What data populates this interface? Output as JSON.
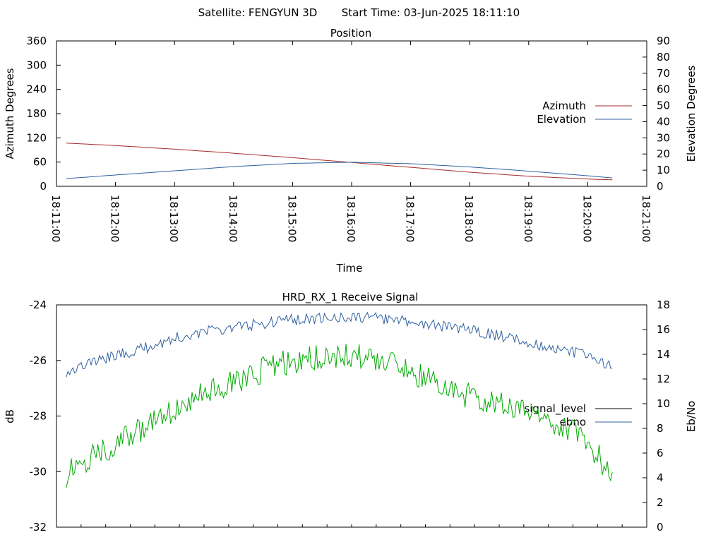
{
  "header": {
    "satellite_label": "Satellite: FENGYUN 3D",
    "start_time_label": "Start Time: 03-Jun-2025 18:11:10"
  },
  "chart_data": [
    {
      "type": "line",
      "title": "Position",
      "xlabel": "Time",
      "ylabel": "Azimuth Degrees",
      "y2label": "Elevation Degrees",
      "xlim": [
        "18:11:00",
        "18:21:00"
      ],
      "x_ticks": [
        "18:11:00",
        "18:12:00",
        "18:13:00",
        "18:14:00",
        "18:15:00",
        "18:16:00",
        "18:17:00",
        "18:18:00",
        "18:19:00",
        "18:20:00",
        "18:21:00"
      ],
      "ylim": [
        0,
        360
      ],
      "y_ticks": [
        0,
        60,
        120,
        180,
        240,
        300,
        360
      ],
      "y2lim": [
        0,
        90
      ],
      "y2_ticks": [
        0,
        10,
        20,
        30,
        40,
        50,
        60,
        70,
        80,
        90
      ],
      "grid": false,
      "legend_position": "right",
      "series": [
        {
          "name": "Azimuth",
          "axis": "left",
          "color": "#a52a2a",
          "points": [
            [
              "18:11:10",
              107
            ],
            [
              "18:12:00",
              101
            ],
            [
              "18:13:00",
              92
            ],
            [
              "18:14:00",
              82
            ],
            [
              "18:15:00",
              71
            ],
            [
              "18:16:00",
              59
            ],
            [
              "18:17:00",
              47
            ],
            [
              "18:18:00",
              35
            ],
            [
              "18:19:00",
              25
            ],
            [
              "18:20:00",
              18
            ],
            [
              "18:20:25",
              16
            ]
          ]
        },
        {
          "name": "Elevation",
          "axis": "right",
          "color": "#3060a0",
          "points": [
            [
              "18:11:10",
              4.8
            ],
            [
              "18:12:00",
              7.0
            ],
            [
              "18:13:00",
              9.6
            ],
            [
              "18:14:00",
              12.2
            ],
            [
              "18:15:00",
              14.2
            ],
            [
              "18:16:00",
              14.9
            ],
            [
              "18:17:00",
              14.0
            ],
            [
              "18:18:00",
              12.0
            ],
            [
              "18:19:00",
              9.4
            ],
            [
              "18:20:00",
              6.5
            ],
            [
              "18:20:25",
              5.2
            ]
          ]
        }
      ]
    },
    {
      "type": "line",
      "title": "HRD_RX_1 Receive Signal",
      "ylabel": "dB",
      "y2label": "Eb/No",
      "xlim": [
        "18:11:00",
        "18:21:00"
      ],
      "x_minor_ticks": 24,
      "ylim": [
        -32,
        -24
      ],
      "y_ticks": [
        -32,
        -30,
        -28,
        -26,
        -24
      ],
      "y2lim": [
        0,
        18
      ],
      "y2_ticks": [
        0,
        2,
        4,
        6,
        8,
        10,
        12,
        14,
        16,
        18
      ],
      "grid": false,
      "legend_position": "right",
      "series": [
        {
          "name": "signal_level",
          "axis": "left",
          "color": "#000000",
          "legend_only": true
        },
        {
          "name": "ebno",
          "axis": "right",
          "color": "#3060a0",
          "points": [
            [
              "18:11:10",
              12.6
            ],
            [
              "18:11:30",
              13.2
            ],
            [
              "18:12:00",
              13.9
            ],
            [
              "18:12:30",
              14.5
            ],
            [
              "18:13:00",
              15.3
            ],
            [
              "18:13:30",
              15.8
            ],
            [
              "18:14:00",
              16.2
            ],
            [
              "18:14:30",
              16.5
            ],
            [
              "18:15:00",
              16.8
            ],
            [
              "18:15:30",
              16.9
            ],
            [
              "18:16:00",
              17.0
            ],
            [
              "18:16:30",
              16.9
            ],
            [
              "18:17:00",
              16.6
            ],
            [
              "18:17:30",
              16.3
            ],
            [
              "18:18:00",
              16.0
            ],
            [
              "18:18:30",
              15.5
            ],
            [
              "18:19:00",
              15.0
            ],
            [
              "18:19:30",
              14.4
            ],
            [
              "18:20:00",
              13.9
            ],
            [
              "18:20:25",
              12.9
            ]
          ]
        },
        {
          "name": "",
          "axis": "right",
          "color": "#00aa00",
          "points": [
            [
              "18:11:10",
              4.3
            ],
            [
              "18:11:30",
              5.5
            ],
            [
              "18:12:00",
              6.7
            ],
            [
              "18:12:30",
              8.1
            ],
            [
              "18:13:00",
              9.6
            ],
            [
              "18:13:30",
              10.8
            ],
            [
              "18:14:00",
              11.6
            ],
            [
              "18:14:30",
              12.7
            ],
            [
              "18:15:00",
              13.5
            ],
            [
              "18:15:30",
              13.8
            ],
            [
              "18:16:00",
              13.9
            ],
            [
              "18:16:30",
              13.4
            ],
            [
              "18:17:00",
              12.6
            ],
            [
              "18:17:30",
              11.5
            ],
            [
              "18:18:00",
              10.6
            ],
            [
              "18:18:30",
              10.0
            ],
            [
              "18:19:00",
              9.5
            ],
            [
              "18:19:30",
              8.4
            ],
            [
              "18:20:00",
              6.8
            ],
            [
              "18:20:25",
              4.3
            ]
          ]
        }
      ]
    }
  ]
}
